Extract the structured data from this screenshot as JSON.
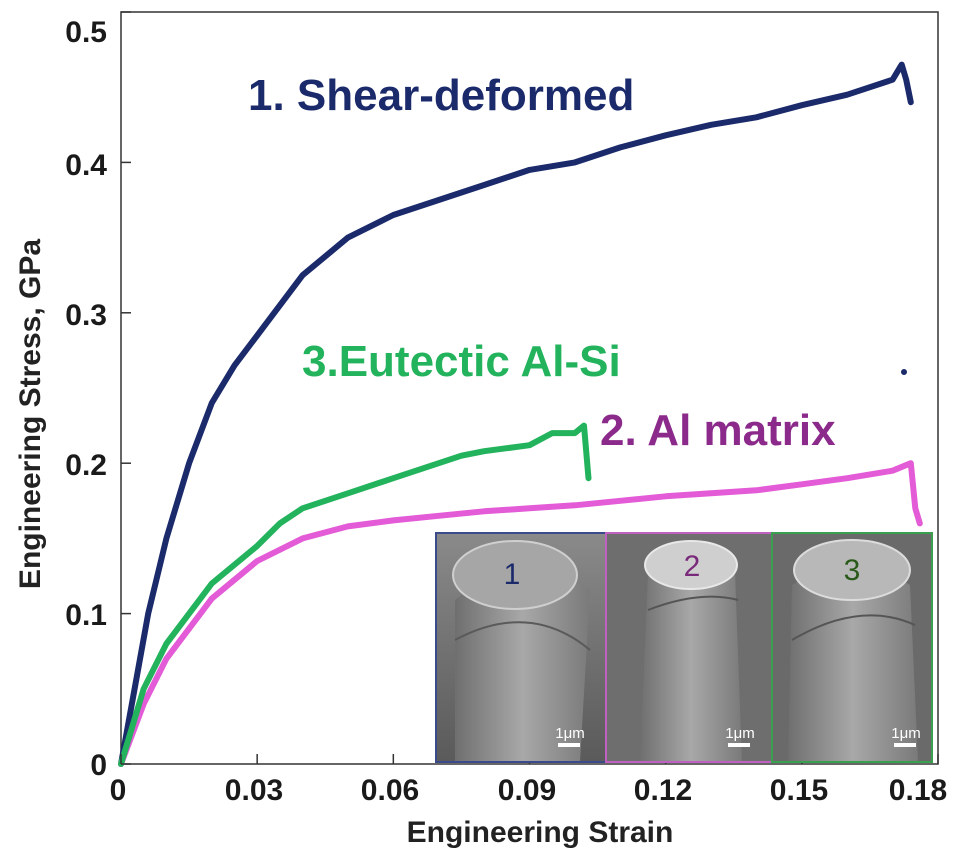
{
  "chart_data": {
    "type": "line",
    "xlabel": "Engineering Strain",
    "ylabel": "Engineering Stress, GPa",
    "xlim": [
      0,
      0.18
    ],
    "ylim": [
      0,
      0.5
    ],
    "x_ticks": [
      "0",
      "0.03",
      "0.06",
      "0.09",
      "0.12",
      "0.15",
      "0.18"
    ],
    "y_ticks": [
      "0",
      "0.1",
      "0.2",
      "0.3",
      "0.4",
      "0.5"
    ],
    "grid": false,
    "series": [
      {
        "name": "1. Shear-deformed",
        "color": "#1b2a6b",
        "x": [
          0,
          0.003,
          0.006,
          0.01,
          0.015,
          0.02,
          0.025,
          0.03,
          0.035,
          0.04,
          0.05,
          0.06,
          0.07,
          0.08,
          0.09,
          0.1,
          0.11,
          0.12,
          0.13,
          0.14,
          0.15,
          0.16,
          0.17,
          0.172,
          0.173,
          0.174
        ],
        "y": [
          0,
          0.05,
          0.1,
          0.15,
          0.2,
          0.24,
          0.265,
          0.285,
          0.305,
          0.325,
          0.35,
          0.365,
          0.375,
          0.385,
          0.395,
          0.4,
          0.41,
          0.418,
          0.425,
          0.43,
          0.438,
          0.445,
          0.455,
          0.465,
          0.455,
          0.44
        ]
      },
      {
        "name": "2. Al matrix",
        "color": "#e35bd6",
        "x": [
          0,
          0.005,
          0.01,
          0.02,
          0.03,
          0.04,
          0.05,
          0.06,
          0.07,
          0.08,
          0.09,
          0.1,
          0.11,
          0.12,
          0.13,
          0.14,
          0.15,
          0.16,
          0.17,
          0.174,
          0.175,
          0.176
        ],
        "y": [
          0,
          0.04,
          0.07,
          0.11,
          0.135,
          0.15,
          0.158,
          0.162,
          0.165,
          0.168,
          0.17,
          0.172,
          0.175,
          0.178,
          0.18,
          0.182,
          0.186,
          0.19,
          0.195,
          0.2,
          0.17,
          0.16
        ]
      },
      {
        "name": "3.Eutectic Al-Si",
        "color": "#22b35c",
        "x": [
          0,
          0.005,
          0.01,
          0.02,
          0.03,
          0.035,
          0.04,
          0.05,
          0.06,
          0.07,
          0.075,
          0.08,
          0.09,
          0.095,
          0.1,
          0.102,
          0.103
        ],
        "y": [
          0,
          0.05,
          0.08,
          0.12,
          0.145,
          0.16,
          0.17,
          0.18,
          0.19,
          0.2,
          0.205,
          0.208,
          0.212,
          0.22,
          0.22,
          0.225,
          0.19
        ]
      }
    ],
    "annotations": [
      "1. Shear-deformed",
      "3.Eutectic Al-Si",
      "2. Al matrix"
    ]
  },
  "inset": {
    "panels": [
      {
        "number": "1",
        "scale": "1μm",
        "border": "#3a4a8a",
        "number_color": "#1b2a6b"
      },
      {
        "number": "2",
        "scale": "1μm",
        "border": "#c060c0",
        "number_color": "#7a2a7a"
      },
      {
        "number": "3",
        "scale": "1μm",
        "border": "#3aa050",
        "number_color": "#2a5a1a"
      }
    ]
  },
  "label_colors": {
    "series1": "#1b2a6b",
    "series2": "#8b2a8b",
    "series3": "#22b35c"
  }
}
